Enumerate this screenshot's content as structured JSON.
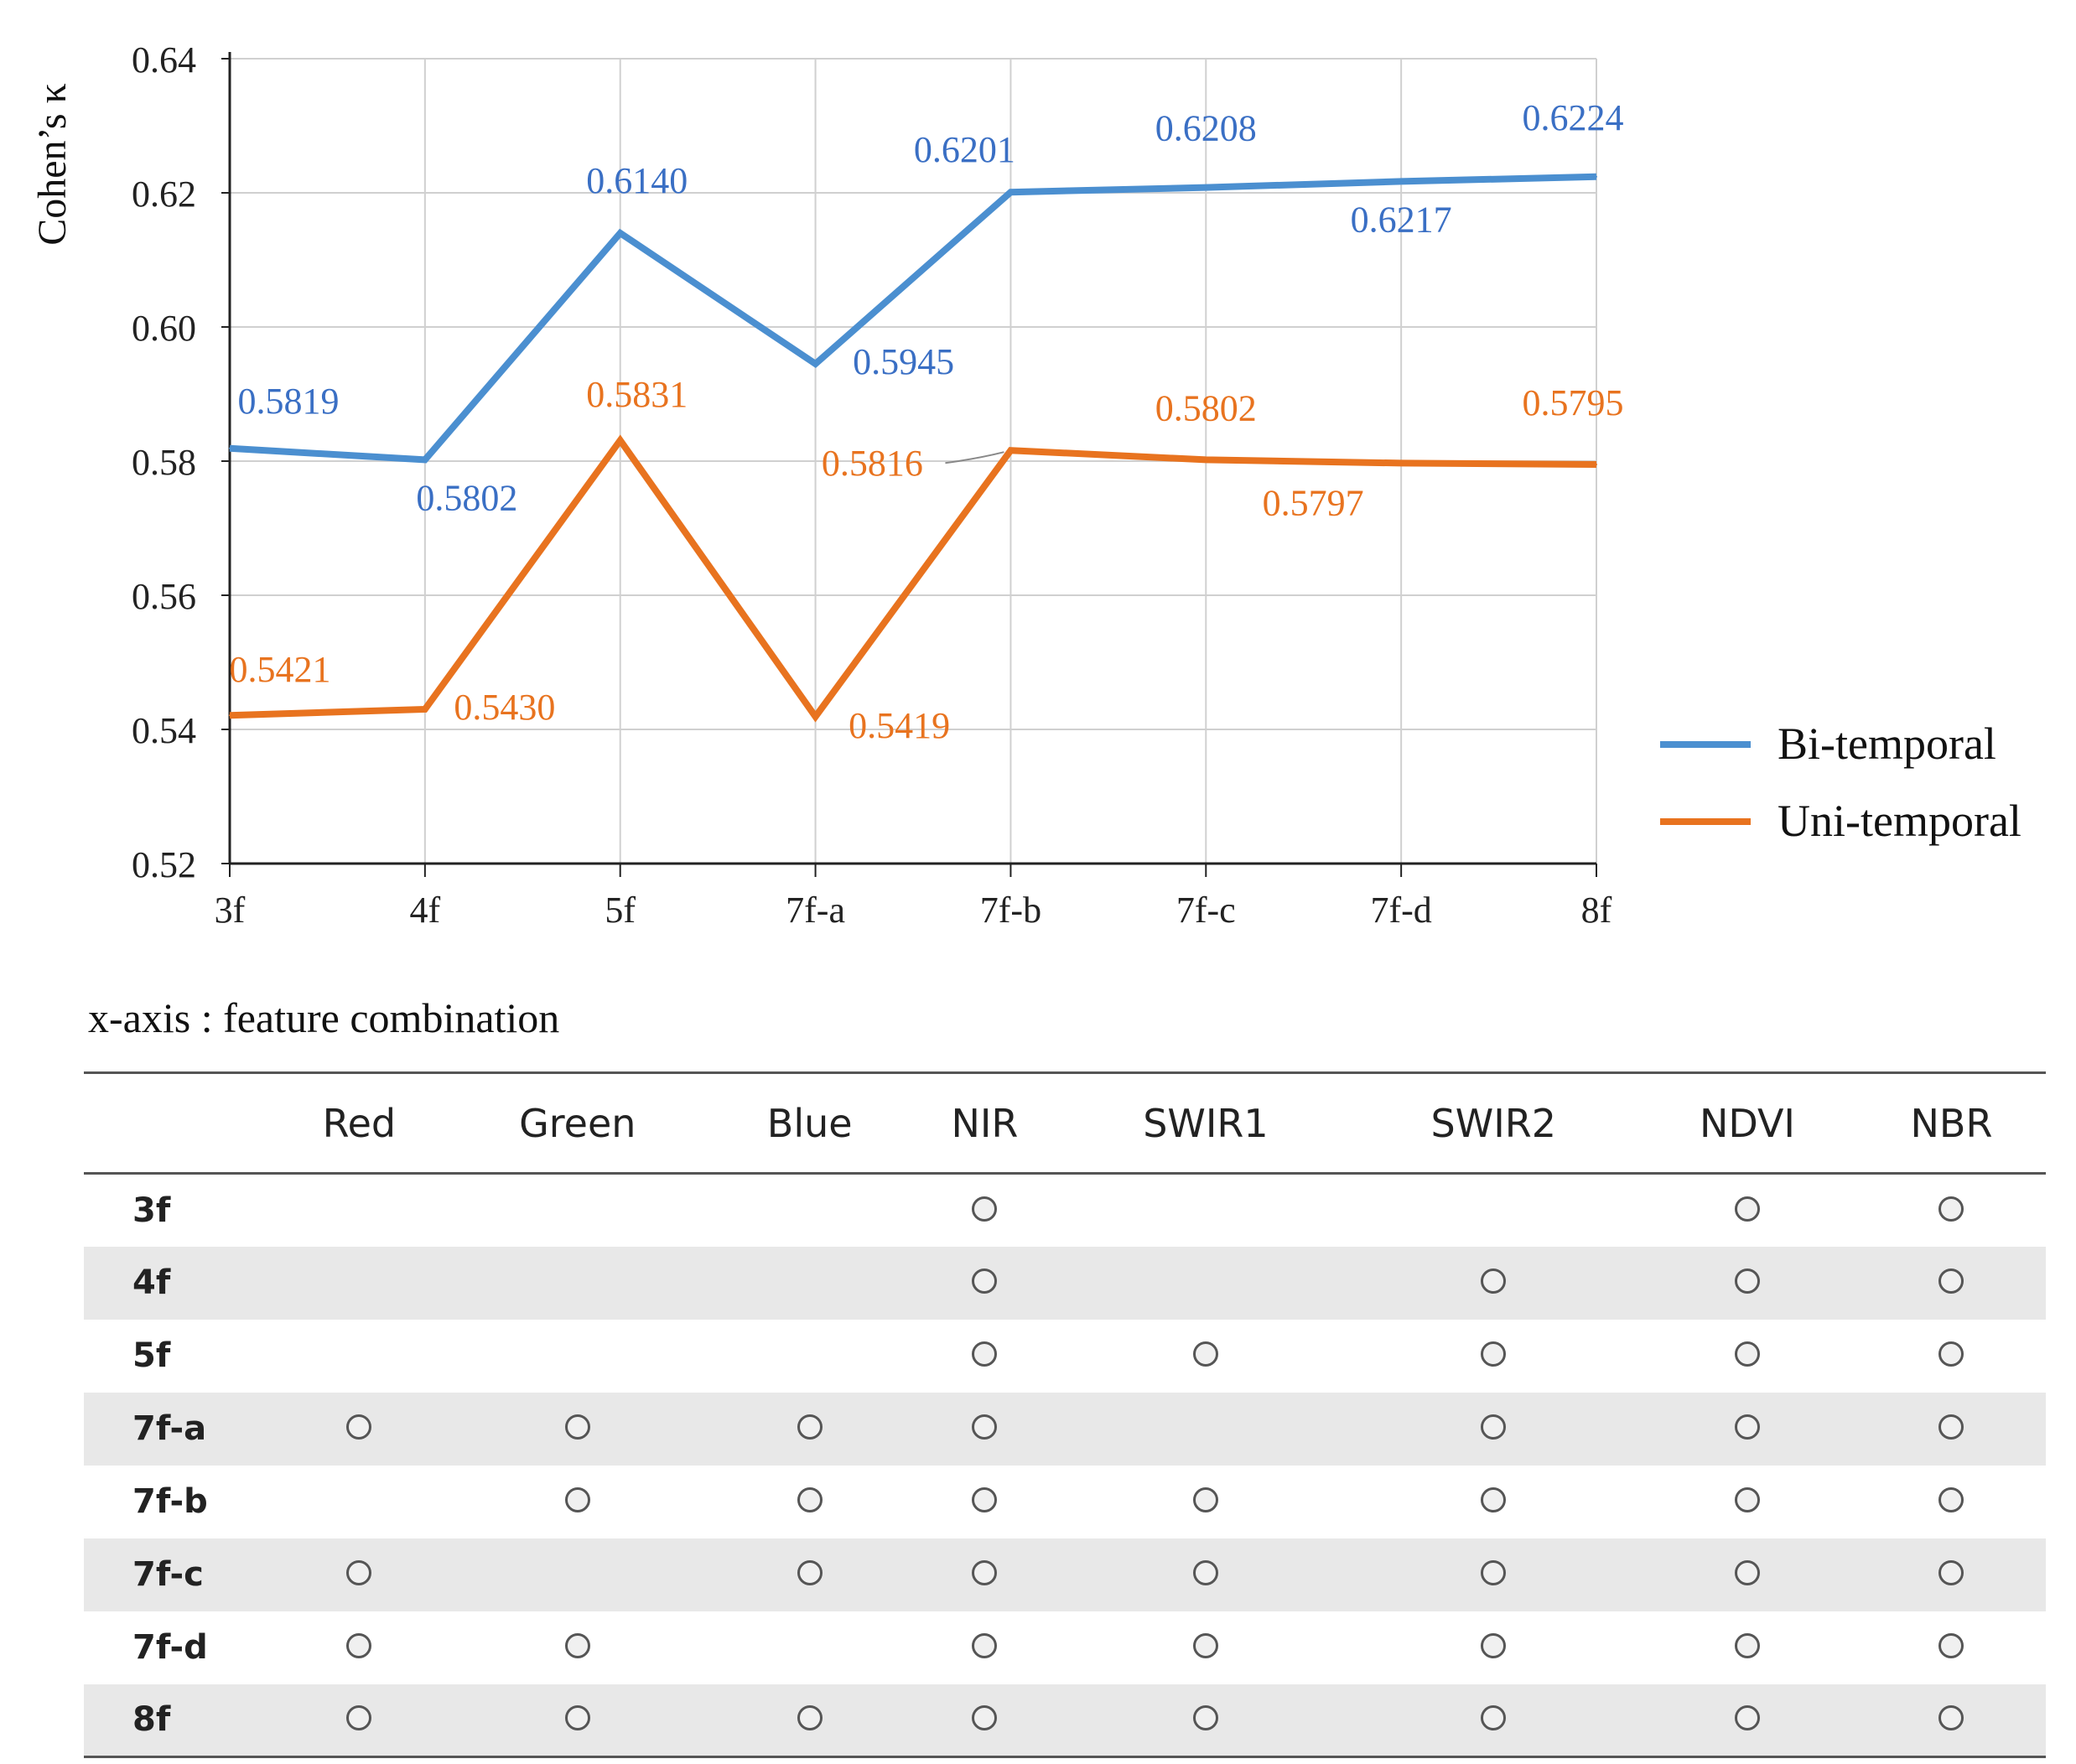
{
  "chart_data": {
    "type": "line",
    "ylabel": "Cohen’s κ",
    "xlabel": "",
    "ylim": [
      0.52,
      0.64
    ],
    "yticks": [
      "0.52",
      "0.54",
      "0.56",
      "0.58",
      "0.60",
      "0.62",
      "0.64"
    ],
    "categories": [
      "3f",
      "4f",
      "5f",
      "7f-a",
      "7f-b",
      "7f-c",
      "7f-d",
      "8f"
    ],
    "grid": true,
    "legend_position": "right",
    "series": [
      {
        "name": "Bi-temporal",
        "color": "#4b8fd0",
        "label_color": "#3a6fc4",
        "values": [
          0.5819,
          0.5802,
          0.614,
          0.5945,
          0.6201,
          0.6208,
          0.6217,
          0.6224
        ],
        "labels": [
          "0.5819",
          "0.5802",
          "0.6140",
          "0.5945",
          "0.6201",
          "0.6208",
          "0.6217",
          "0.6224"
        ]
      },
      {
        "name": "Uni-temporal",
        "color": "#e8731f",
        "label_color": "#e8731f",
        "values": [
          0.5421,
          0.543,
          0.5831,
          0.5419,
          0.5816,
          0.5802,
          0.5797,
          0.5795
        ],
        "labels": [
          "0.5421",
          "0.5430",
          "0.5831",
          "0.5419",
          "0.5816",
          "0.5802",
          "0.5797",
          "0.5795"
        ]
      }
    ]
  },
  "caption": "x-axis : feature combination",
  "table": {
    "columns": [
      "Red",
      "Green",
      "Blue",
      "NIR",
      "SWIR1",
      "SWIR2",
      "NDVI",
      "NBR"
    ],
    "rows": [
      {
        "label": "3f",
        "marks": [
          false,
          false,
          false,
          true,
          false,
          false,
          true,
          true
        ]
      },
      {
        "label": "4f",
        "marks": [
          false,
          false,
          false,
          true,
          false,
          true,
          true,
          true
        ]
      },
      {
        "label": "5f",
        "marks": [
          false,
          false,
          false,
          true,
          true,
          true,
          true,
          true
        ]
      },
      {
        "label": "7f-a",
        "marks": [
          true,
          true,
          true,
          true,
          false,
          true,
          true,
          true
        ]
      },
      {
        "label": "7f-b",
        "marks": [
          false,
          true,
          true,
          true,
          true,
          true,
          true,
          true
        ]
      },
      {
        "label": "7f-c",
        "marks": [
          true,
          false,
          true,
          true,
          true,
          true,
          true,
          true
        ]
      },
      {
        "label": "7f-d",
        "marks": [
          true,
          true,
          false,
          true,
          true,
          true,
          true,
          true
        ]
      },
      {
        "label": "8f",
        "marks": [
          true,
          true,
          true,
          true,
          true,
          true,
          true,
          true
        ]
      }
    ]
  }
}
